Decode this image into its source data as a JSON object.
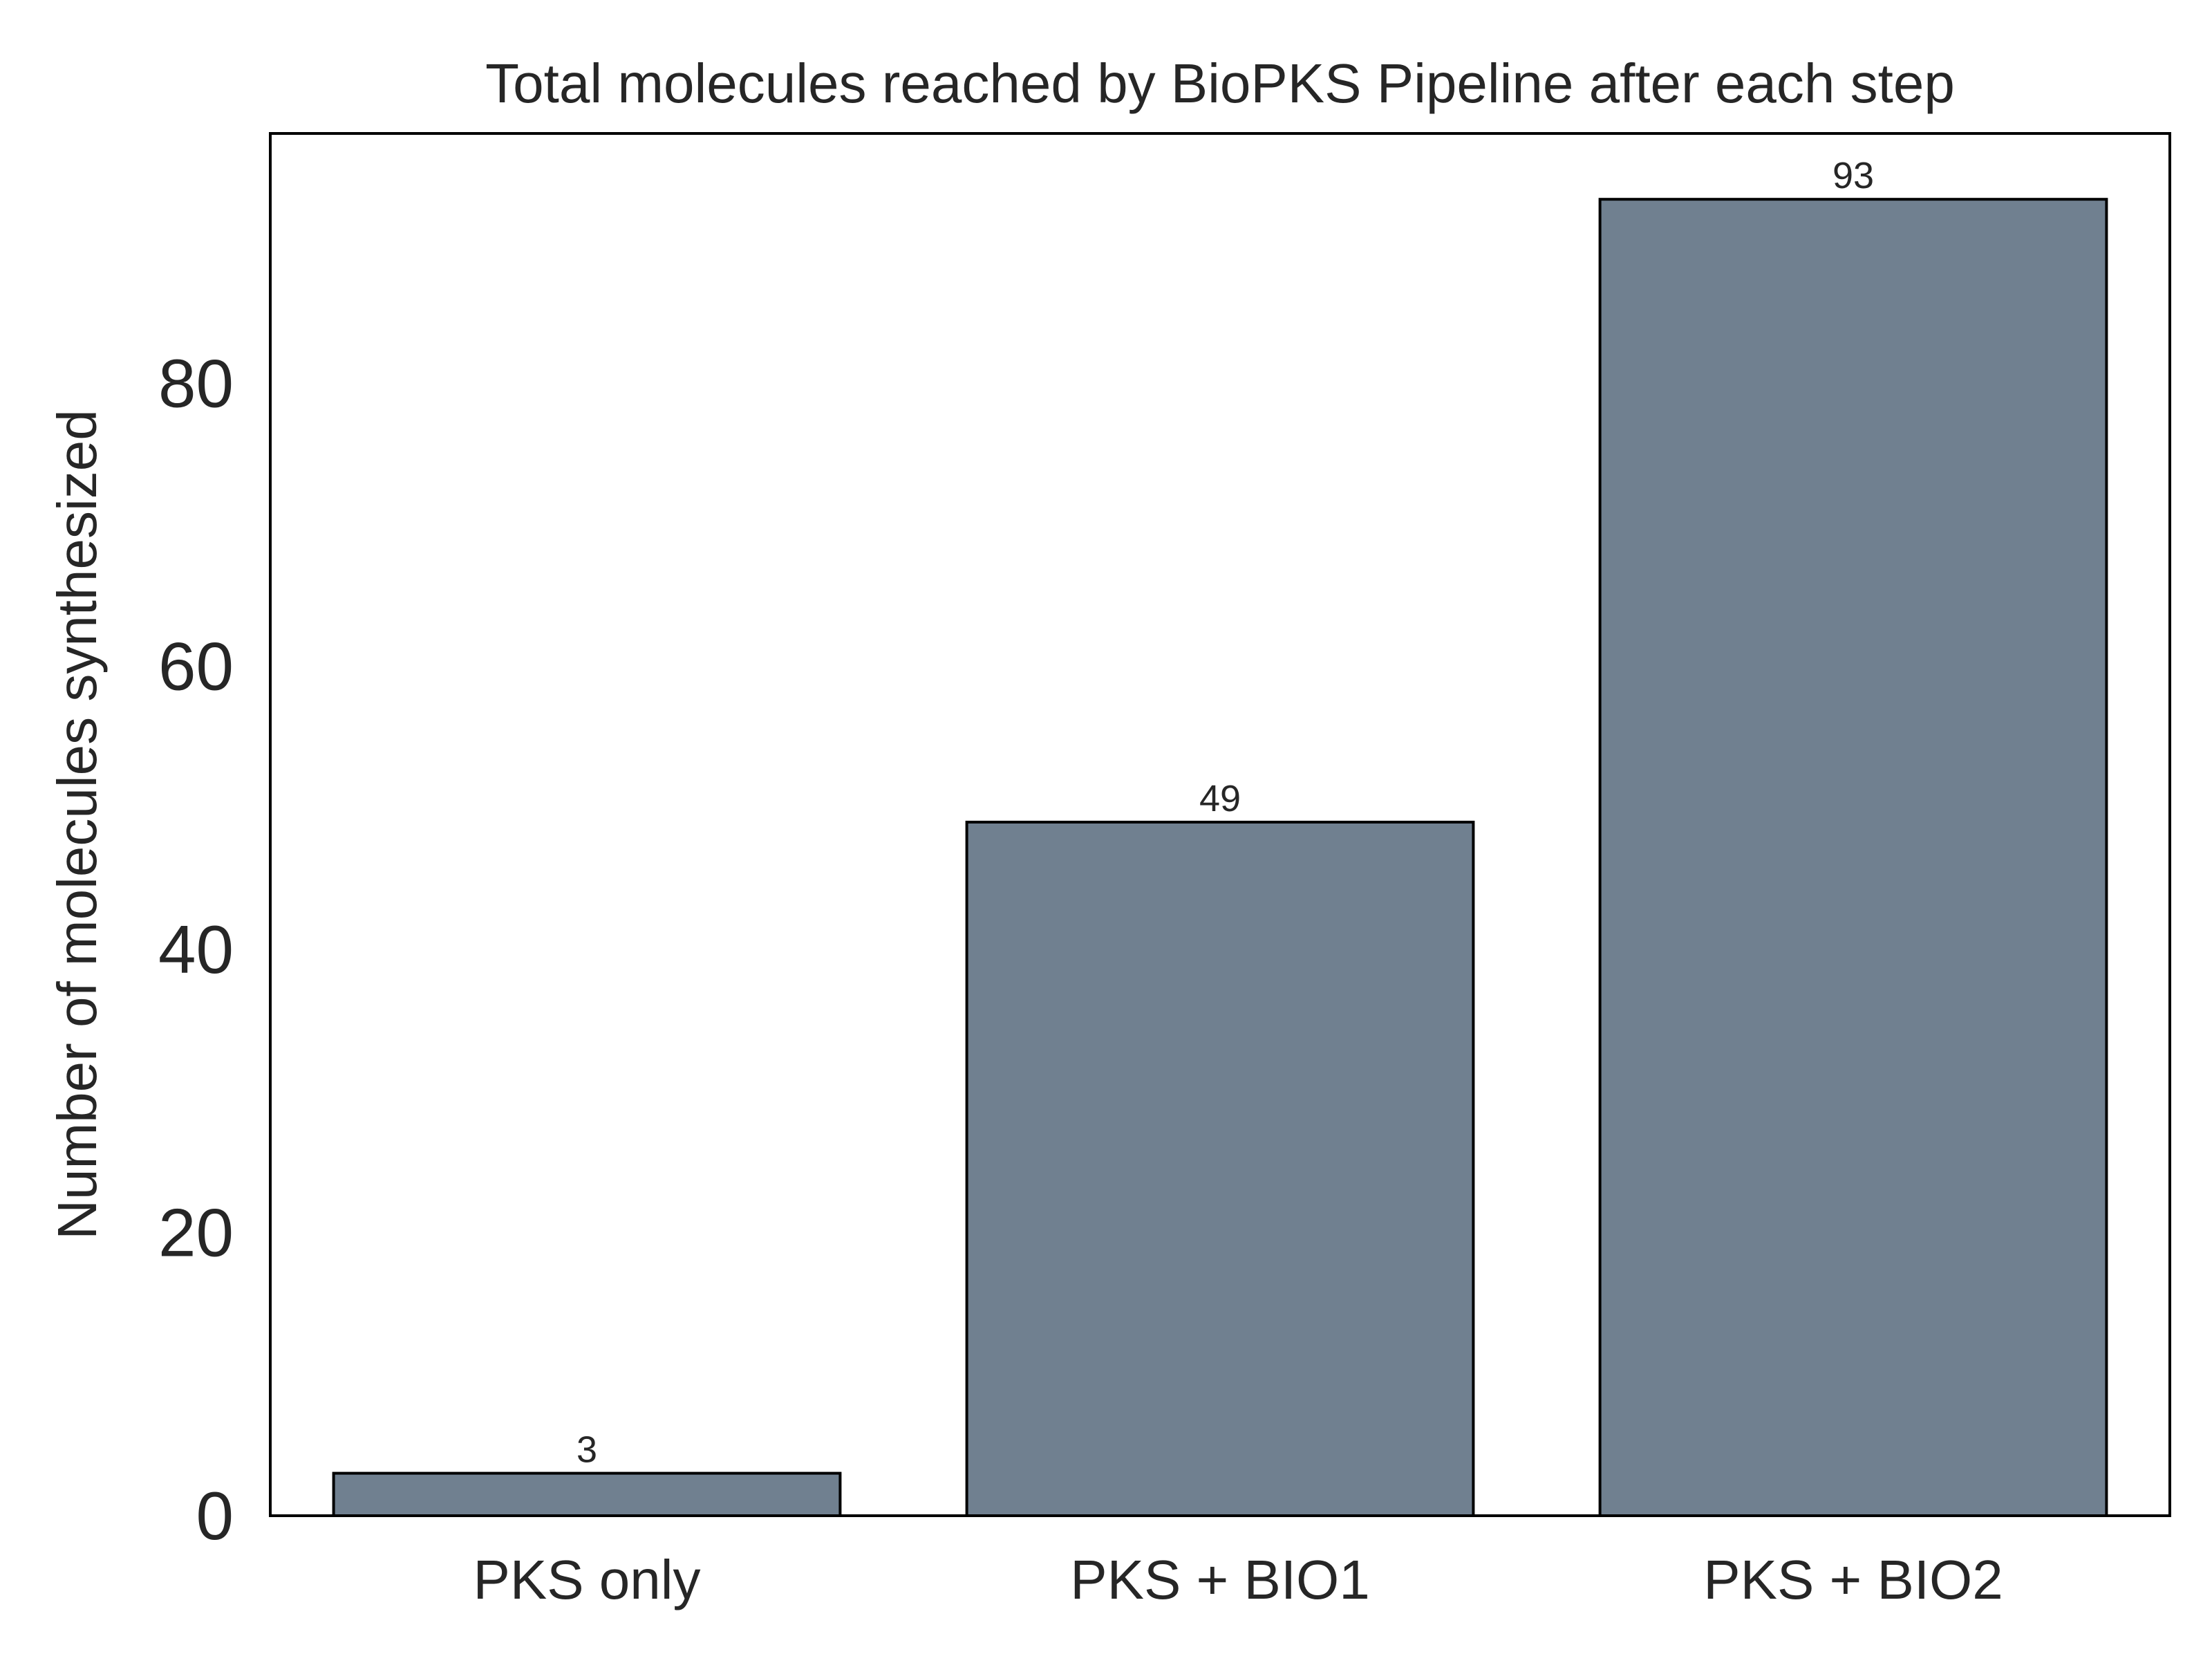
{
  "chart_data": {
    "type": "bar",
    "title": "Total molecules reached by BioPKS Pipeline after each step",
    "xlabel": "",
    "ylabel": "Number of molecules synthesized",
    "categories": [
      "PKS only",
      "PKS + BIO1",
      "PKS + BIO2"
    ],
    "values": [
      3,
      49,
      93
    ],
    "data_labels": [
      "3",
      "49",
      "93"
    ],
    "ylim": [
      0,
      97.65
    ],
    "yticks": [
      0,
      20,
      40,
      60,
      80
    ],
    "ytick_labels": [
      "0",
      "20",
      "40",
      "60",
      "80"
    ],
    "grid": false,
    "legend": "none",
    "colors": {
      "bar_fill": "#708090",
      "bar_edge": "#000000",
      "axes_edge": "#000000",
      "text": "#262626",
      "background": "#ffffff"
    }
  }
}
